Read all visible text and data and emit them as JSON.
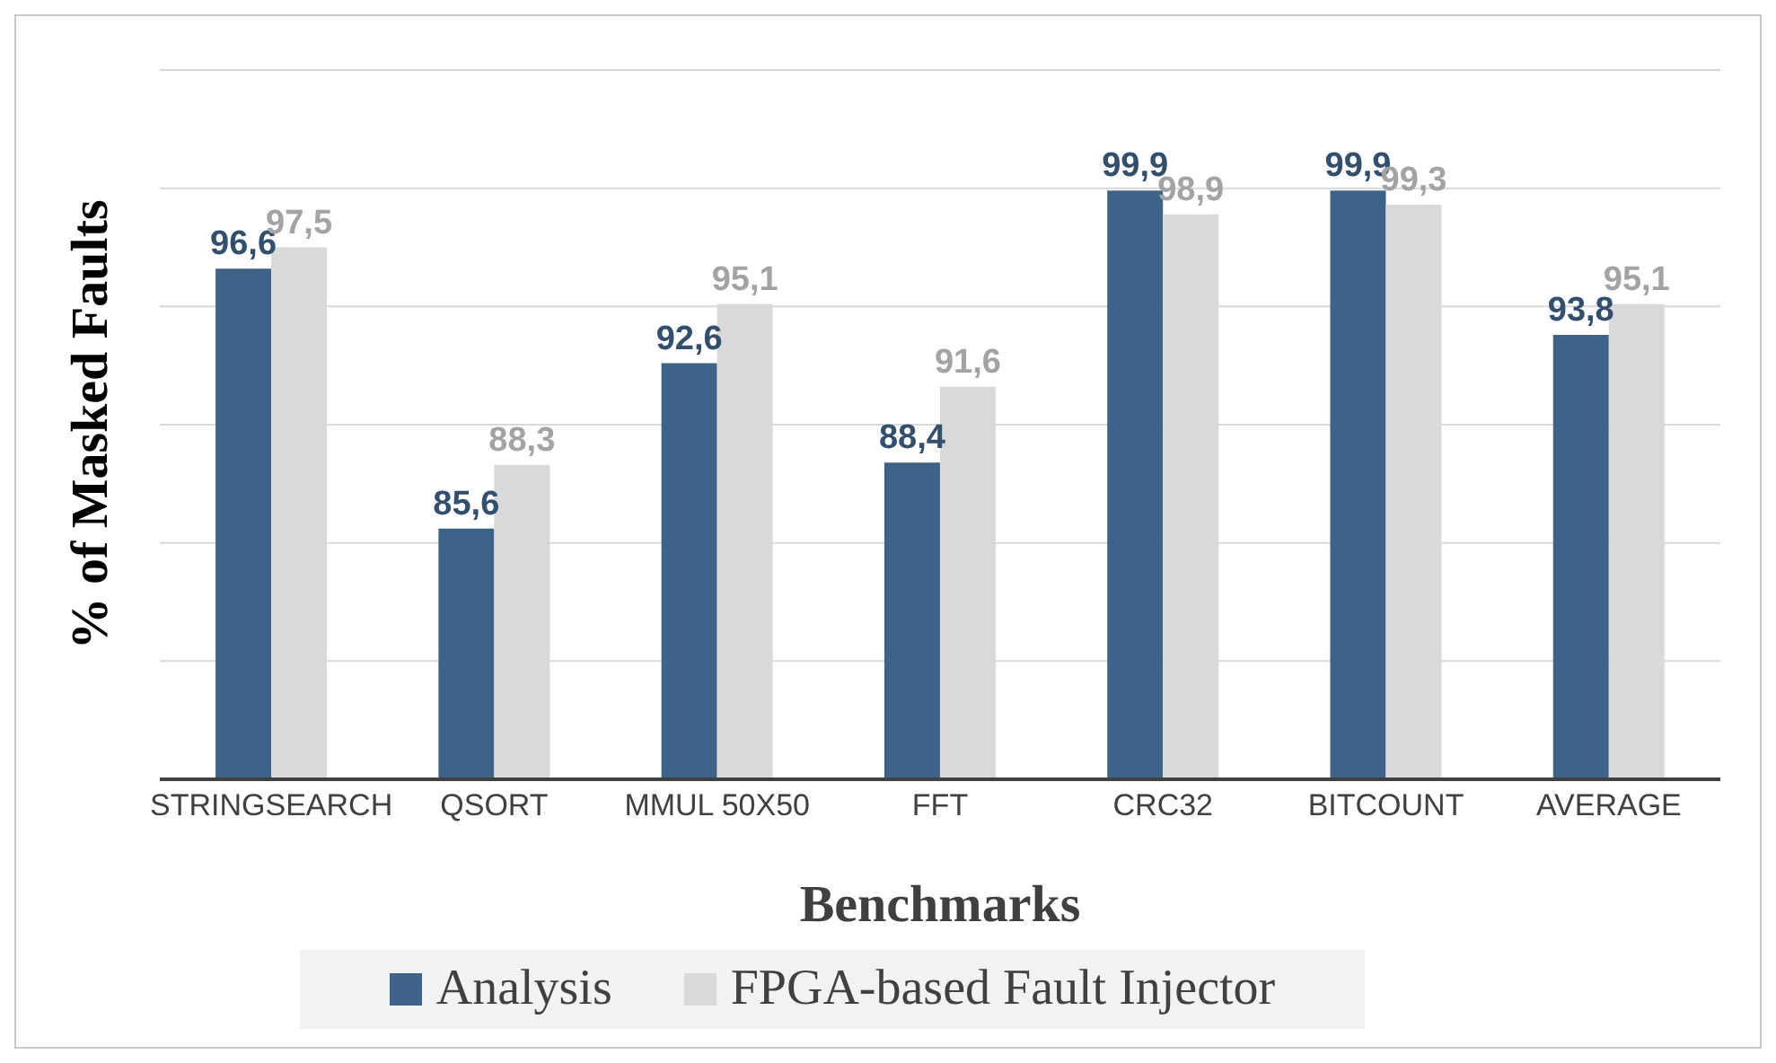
{
  "chart_data": {
    "type": "bar",
    "xlabel": "Benchmarks",
    "ylabel": "%  of Masked Faults",
    "categories": [
      "STRINGSEARCH",
      "QSORT",
      "MMUL 50X50",
      "FFT",
      "CRC32",
      "BITCOUNT",
      "AVERAGE"
    ],
    "series": [
      {
        "name": "Analysis",
        "color": "#3e6389",
        "values": [
          96.6,
          85.6,
          92.6,
          88.4,
          99.9,
          99.9,
          93.8
        ],
        "value_labels": [
          "96,6",
          "85,6",
          "92,6",
          "88,4",
          "99,9",
          "99,9",
          "93,8"
        ]
      },
      {
        "name": "FPGA-based Fault Injector",
        "color": "#d9d9d9",
        "values": [
          97.5,
          88.3,
          95.1,
          91.6,
          98.9,
          99.3,
          95.1
        ],
        "value_labels": [
          "97,5",
          "88,3",
          "95,1",
          "91,6",
          "98,9",
          "99,3",
          "95,1"
        ]
      }
    ],
    "ylim": [
      75,
      105
    ],
    "yticks": [
      {
        "value": 75,
        "label": null
      },
      {
        "value": 80,
        "label": null
      },
      {
        "value": 85,
        "label": null
      },
      {
        "value": 90,
        "label": null
      },
      {
        "value": 95,
        "label": null
      },
      {
        "value": 100,
        "label": null
      },
      {
        "value": 105,
        "label": null
      }
    ],
    "grid": "y",
    "legend": "bottom",
    "tick_labels": "x"
  }
}
